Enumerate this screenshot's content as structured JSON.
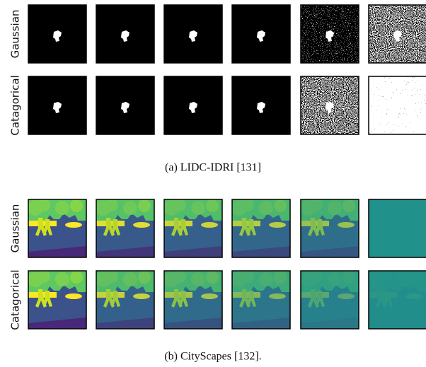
{
  "panels": [
    {
      "rows": [
        "Gaussian",
        "Catagorical"
      ],
      "caption": "(a) LIDC-IDRI [131]"
    },
    {
      "rows": [
        "Gaussian",
        "Catagorical"
      ],
      "caption": "(b) CityScapes [132]."
    }
  ]
}
